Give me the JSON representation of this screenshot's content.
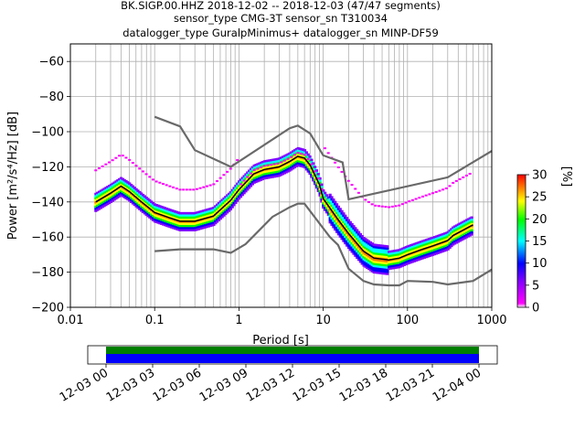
{
  "title_lines": [
    "BK.SIGP.00.HHZ   2018-12-02 -- 2018-12-03  (47/47 segments)",
    "sensor_type CMG-3T sensor_sn T310034",
    "datalogger_type GuralpMinimus+ datalogger_sn MINP-DF59"
  ],
  "chart_data": {
    "type": "line",
    "title": "BK.SIGP.00.HHZ   2018-12-02 -- 2018-12-03  (47/47 segments)",
    "xlabel": "Period [s]",
    "ylabel": "Power [m²/s⁴/Hz] [dB]",
    "xscale": "log",
    "xlim": [
      0.01,
      1000
    ],
    "ylim": [
      -200,
      -50
    ],
    "x_ticks": [
      0.01,
      0.1,
      1,
      10,
      100,
      1000
    ],
    "x_tick_labels": [
      "0.01",
      "0.1",
      "1",
      "10",
      "100",
      "1000"
    ],
    "y_ticks": [
      -200,
      -180,
      -160,
      -140,
      -120,
      -100,
      -80,
      -60
    ],
    "y_tick_labels": [
      "−200",
      "−180",
      "−160",
      "−140",
      "−120",
      "−100",
      "−80",
      "−60"
    ],
    "grid": true,
    "series": [
      {
        "color": "#696969",
        "x": [
          0.1,
          0.2,
          0.3,
          0.8,
          4,
          5,
          7,
          10,
          17,
          20,
          300,
          1000
        ],
        "y": [
          -91.5,
          -97,
          -110.5,
          -120,
          -98,
          -96.5,
          -101,
          -113.5,
          -117.5,
          -138.5,
          -126,
          -111
        ]
      },
      {
        "color": "#696969",
        "x": [
          0.1,
          0.2,
          0.5,
          0.8,
          1.2,
          2.5,
          4,
          5,
          6,
          12,
          15,
          20,
          30,
          40,
          60,
          80,
          100,
          200,
          300,
          600,
          1000
        ],
        "y": [
          -168,
          -167,
          -167,
          -169,
          -164,
          -148.5,
          -143,
          -141,
          -141,
          -160,
          -164.5,
          -178,
          -185,
          -187,
          -187.5,
          -187.5,
          -185,
          -185.5,
          -187,
          -185,
          -178.5
        ]
      },
      {
        "color": "#000000",
        "x": [
          0.02,
          0.03,
          0.04,
          0.05,
          0.07,
          0.1,
          0.15,
          0.2,
          0.3,
          0.5,
          0.8,
          1,
          1.5,
          2,
          3,
          4,
          5,
          6,
          7,
          9,
          10,
          15,
          20,
          30,
          40,
          60,
          80,
          100,
          150,
          200,
          300,
          350,
          600
        ],
        "y": [
          -140,
          -135,
          -131,
          -134,
          -140,
          -146,
          -149,
          -151,
          -151,
          -148,
          -139,
          -133,
          -124,
          -121.5,
          -120,
          -117,
          -114,
          -115,
          -119,
          -130,
          -138,
          -150,
          -158,
          -168,
          -172,
          -173,
          -172,
          -170,
          -167,
          -165,
          -162,
          -159,
          -153
        ]
      }
    ],
    "colorbar": {
      "label": "[%]",
      "range": [
        0,
        30
      ],
      "ticks": [
        0,
        5,
        10,
        15,
        20,
        25,
        30
      ],
      "tick_labels": [
        "0",
        "5",
        "10",
        "15",
        "20",
        "25",
        "30"
      ]
    },
    "timeline": {
      "tick_labels": [
        "12-03 00",
        "12-03 03",
        "12-03 06",
        "12-03 09",
        "12-03 12",
        "12-03 15",
        "12-03 18",
        "12-03 21",
        "12-04 00"
      ],
      "band_colors": [
        "#008000",
        "#0000ff"
      ]
    }
  }
}
